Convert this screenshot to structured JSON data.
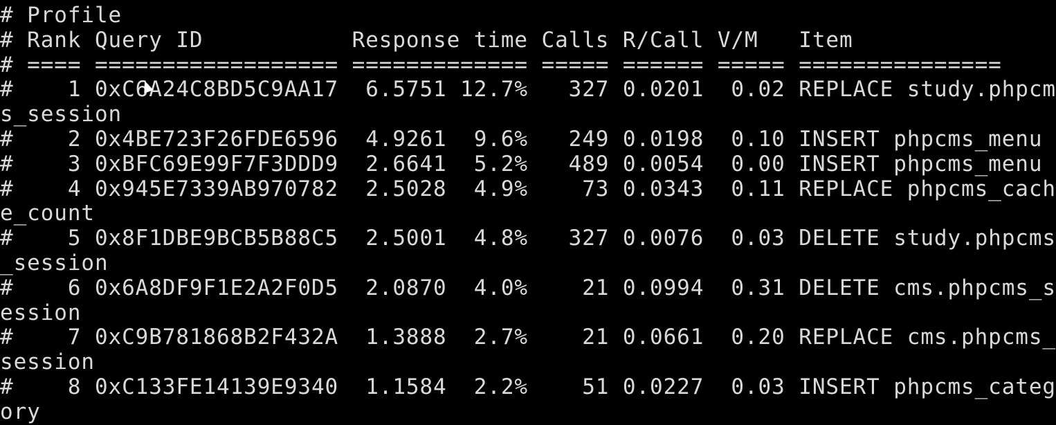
{
  "colors": {
    "background": "#000000",
    "text": "#d9d9d9"
  },
  "terminal": {
    "lines": [
      "# Profile",
      "# Rank Query ID           Response time Calls R/Call V/M   Item",
      "# ==== ================== ============= ===== ====== ===== ===============",
      "#    1 0xC6A24C8BD5C9AA17  6.5751 12.7%   327 0.0201  0.02 REPLACE study.phpcm",
      "s_session",
      "#    2 0x4BE723F26FDE6596  4.9261  9.6%   249 0.0198  0.10 INSERT phpcms_menu",
      "#    3 0xBFC69E99F7F3DDD9  2.6641  5.2%   489 0.0054  0.00 INSERT phpcms_menu",
      "#    4 0x945E7339AB970782  2.5028  4.9%    73 0.0343  0.11 REPLACE phpcms_cach",
      "e_count",
      "#    5 0x8F1DBE9BCB5B88C5  2.5001  4.8%   327 0.0076  0.03 DELETE study.phpcms",
      "_session",
      "#    6 0x6A8DF9F1E2A2F0D5  2.0870  4.0%    21 0.0994  0.31 DELETE cms.phpcms_s",
      "ession",
      "#    7 0xC9B781868B2F432A  1.3888  2.7%    21 0.0661  0.20 REPLACE cms.phpcms_",
      "session",
      "#    8 0xC133FE14139E9340  1.1584  2.2%    51 0.0227  0.03 INSERT phpcms_categ",
      "ory"
    ]
  }
}
